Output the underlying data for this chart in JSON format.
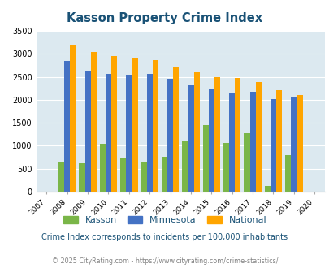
{
  "title": "Kasson Property Crime Index",
  "years": [
    2007,
    2008,
    2009,
    2010,
    2011,
    2012,
    2013,
    2014,
    2015,
    2016,
    2017,
    2018,
    2019,
    2020
  ],
  "kasson": [
    0,
    650,
    610,
    1050,
    750,
    660,
    760,
    1100,
    1450,
    1060,
    1270,
    130,
    800,
    0
  ],
  "minnesota": [
    0,
    2850,
    2640,
    2570,
    2550,
    2570,
    2460,
    2310,
    2230,
    2140,
    2180,
    2010,
    2060,
    0
  ],
  "national": [
    0,
    3200,
    3040,
    2950,
    2900,
    2860,
    2720,
    2600,
    2500,
    2470,
    2380,
    2210,
    2110,
    0
  ],
  "kasson_color": "#7ab648",
  "minnesota_color": "#4472c4",
  "national_color": "#ffa500",
  "bg_color": "#dce9f0",
  "ylim": [
    0,
    3500
  ],
  "yticks": [
    0,
    500,
    1000,
    1500,
    2000,
    2500,
    3000,
    3500
  ],
  "title_color": "#1a5276",
  "subtitle": "Crime Index corresponds to incidents per 100,000 inhabitants",
  "footer": "© 2025 CityRating.com - https://www.cityrating.com/crime-statistics/",
  "legend_labels": [
    "Kasson",
    "Minnesota",
    "National"
  ],
  "bar_years": [
    2008,
    2009,
    2010,
    2011,
    2012,
    2013,
    2014,
    2015,
    2016,
    2017,
    2018,
    2019
  ],
  "all_tick_years": [
    2007,
    2008,
    2009,
    2010,
    2011,
    2012,
    2013,
    2014,
    2015,
    2016,
    2017,
    2018,
    2019,
    2020
  ]
}
